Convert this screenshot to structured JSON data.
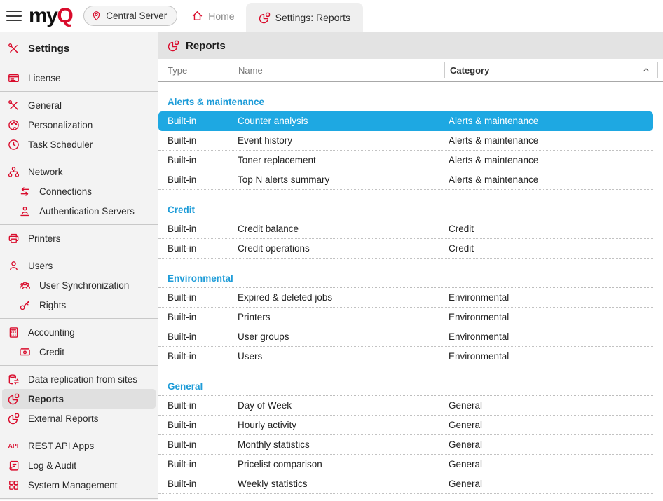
{
  "brand": {
    "logo_text_black": "my",
    "logo_text_red": "Q"
  },
  "topbar": {
    "server_button_label": "Central Server",
    "home_tab_label": "Home",
    "active_tab_label": "Settings: Reports"
  },
  "sidebar": {
    "title": "Settings",
    "sections": [
      {
        "items": [
          {
            "label": "License",
            "icon": "license"
          }
        ]
      },
      {
        "items": [
          {
            "label": "General",
            "icon": "tools"
          },
          {
            "label": "Personalization",
            "icon": "palette"
          },
          {
            "label": "Task Scheduler",
            "icon": "clock"
          }
        ]
      },
      {
        "items": [
          {
            "label": "Network",
            "icon": "network"
          },
          {
            "label": "Connections",
            "icon": "arrows-swap",
            "indent": true
          },
          {
            "label": "Authentication Servers",
            "icon": "auth-person",
            "indent": true
          }
        ]
      },
      {
        "items": [
          {
            "label": "Printers",
            "icon": "printer"
          }
        ]
      },
      {
        "items": [
          {
            "label": "Users",
            "icon": "user"
          },
          {
            "label": "User Synchronization",
            "icon": "user-group",
            "indent": true
          },
          {
            "label": "Rights",
            "icon": "key",
            "indent": true
          }
        ]
      },
      {
        "items": [
          {
            "label": "Accounting",
            "icon": "calculator"
          },
          {
            "label": "Credit",
            "icon": "banknote",
            "indent": true
          }
        ]
      },
      {
        "items": [
          {
            "label": "Data replication from sites",
            "icon": "database-sync"
          },
          {
            "label": "Reports",
            "icon": "pie-chart",
            "selected": true
          },
          {
            "label": "External Reports",
            "icon": "pie-chart"
          }
        ]
      },
      {
        "items": [
          {
            "label": "REST API Apps",
            "icon": "api"
          },
          {
            "label": "Log & Audit",
            "icon": "scroll"
          },
          {
            "label": "System Management",
            "icon": "grid"
          }
        ]
      }
    ]
  },
  "content": {
    "title": "Reports",
    "table": {
      "columns": [
        {
          "label": "Type"
        },
        {
          "label": "Name"
        },
        {
          "label": "Category",
          "sorted": true,
          "sort_direction": "ascending"
        }
      ],
      "groups": [
        {
          "title": "Alerts & maintenance",
          "rows": [
            {
              "type": "Built-in",
              "name": "Counter analysis",
              "category": "Alerts & maintenance",
              "selected": true
            },
            {
              "type": "Built-in",
              "name": "Event history",
              "category": "Alerts & maintenance"
            },
            {
              "type": "Built-in",
              "name": "Toner replacement",
              "category": "Alerts & maintenance"
            },
            {
              "type": "Built-in",
              "name": "Top N alerts summary",
              "category": "Alerts & maintenance"
            }
          ]
        },
        {
          "title": "Credit",
          "rows": [
            {
              "type": "Built-in",
              "name": "Credit balance",
              "category": "Credit"
            },
            {
              "type": "Built-in",
              "name": "Credit operations",
              "category": "Credit"
            }
          ]
        },
        {
          "title": "Environmental",
          "rows": [
            {
              "type": "Built-in",
              "name": "Expired & deleted jobs",
              "category": "Environmental"
            },
            {
              "type": "Built-in",
              "name": "Printers",
              "category": "Environmental"
            },
            {
              "type": "Built-in",
              "name": "User groups",
              "category": "Environmental"
            },
            {
              "type": "Built-in",
              "name": "Users",
              "category": "Environmental"
            }
          ]
        },
        {
          "title": "General",
          "rows": [
            {
              "type": "Built-in",
              "name": "Day of Week",
              "category": "General"
            },
            {
              "type": "Built-in",
              "name": "Hourly activity",
              "category": "General"
            },
            {
              "type": "Built-in",
              "name": "Monthly statistics",
              "category": "General"
            },
            {
              "type": "Built-in",
              "name": "Pricelist comparison",
              "category": "General"
            },
            {
              "type": "Built-in",
              "name": "Weekly statistics",
              "category": "General"
            }
          ]
        }
      ]
    }
  },
  "colors": {
    "brand_red": "#d90c2c",
    "selection_blue": "#1ea8e2",
    "group_title_blue": "#1e9cd8",
    "content_header_gray": "#e3e3e3"
  }
}
